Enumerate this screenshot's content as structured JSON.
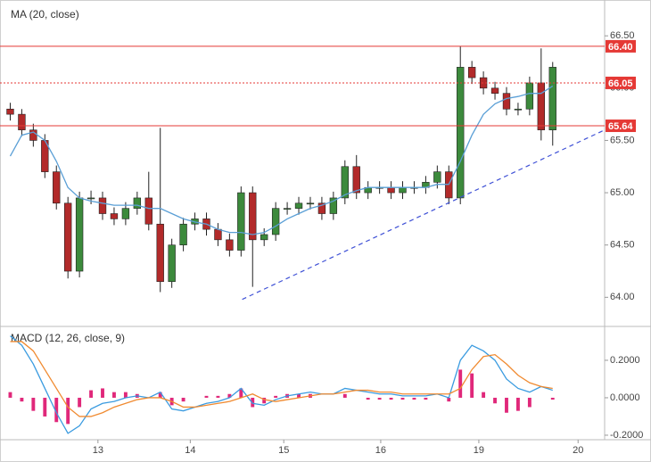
{
  "chart_data": [
    {
      "type": "candlestick",
      "title": "MA (20, close)",
      "xlim": [
        0,
        52
      ],
      "ylim": [
        63.73,
        66.8
      ],
      "yticks": [
        {
          "value": 64,
          "label": "64.00"
        },
        {
          "value": 64.5,
          "label": "64.50"
        },
        {
          "value": 65,
          "label": "65.00"
        },
        {
          "value": 65.5,
          "label": "65.50"
        },
        {
          "value": 66,
          "label": "66.00"
        },
        {
          "value": 66.5,
          "label": "66.50"
        }
      ],
      "grid": false,
      "up_color": "#3c8a3c",
      "down_color": "#b22a2a",
      "open": [
        65.8,
        65.75,
        65.6,
        65.5,
        65.2,
        64.9,
        64.25,
        64.95,
        64.95,
        64.8,
        64.75,
        64.85,
        64.95,
        64.7,
        64.15,
        64.5,
        64.7,
        64.75,
        64.65,
        64.55,
        64.45,
        65.0,
        64.55,
        64.6,
        64.85,
        64.85,
        64.9,
        64.9,
        64.8,
        64.95,
        65.25,
        65.0,
        65.05,
        65.05,
        65.0,
        65.05,
        65.05,
        65.1,
        65.2,
        64.95,
        66.2,
        66.1,
        66.0,
        65.95,
        65.8,
        65.8,
        66.05,
        65.6
      ],
      "high": [
        65.86,
        65.8,
        65.66,
        65.56,
        65.26,
        64.96,
        65.01,
        65.02,
        65.01,
        64.86,
        64.91,
        65.01,
        65.2,
        65.62,
        64.56,
        64.76,
        64.81,
        64.81,
        64.71,
        64.61,
        65.06,
        65.06,
        64.66,
        64.91,
        64.91,
        64.96,
        64.96,
        64.96,
        65.01,
        65.31,
        65.36,
        65.11,
        65.11,
        65.11,
        65.11,
        65.11,
        65.16,
        65.26,
        65.26,
        66.4,
        66.26,
        66.16,
        66.06,
        66.01,
        65.86,
        66.11,
        66.38,
        66.25
      ],
      "low": [
        65.69,
        65.54,
        65.44,
        65.14,
        64.84,
        64.18,
        64.19,
        64.89,
        64.74,
        64.69,
        64.69,
        64.79,
        64.64,
        64.05,
        64.09,
        64.44,
        64.64,
        64.59,
        64.49,
        64.39,
        64.39,
        64.1,
        64.49,
        64.54,
        64.79,
        64.79,
        64.84,
        64.74,
        64.74,
        64.89,
        64.94,
        64.94,
        64.99,
        64.94,
        64.94,
        64.99,
        64.99,
        65.04,
        64.89,
        64.89,
        66.04,
        65.94,
        65.89,
        65.74,
        65.74,
        65.74,
        65.5,
        65.45
      ],
      "close": [
        65.75,
        65.6,
        65.5,
        65.2,
        64.9,
        64.25,
        64.95,
        64.95,
        64.8,
        64.75,
        64.85,
        64.95,
        64.7,
        64.15,
        64.5,
        64.7,
        64.75,
        64.65,
        64.55,
        64.45,
        65.0,
        64.55,
        64.6,
        64.85,
        64.85,
        64.9,
        64.9,
        64.8,
        64.95,
        65.25,
        65.0,
        65.05,
        65.05,
        65.0,
        65.05,
        65.05,
        65.1,
        65.2,
        64.95,
        66.2,
        66.1,
        66.0,
        65.95,
        65.8,
        65.8,
        66.05,
        65.6,
        66.2
      ],
      "ma": {
        "color": "#5a9fd6",
        "values": [
          65.35,
          65.55,
          65.58,
          65.5,
          65.3,
          65.05,
          64.95,
          64.92,
          64.9,
          64.88,
          64.88,
          64.88,
          64.85,
          64.85,
          64.8,
          64.75,
          64.72,
          64.7,
          64.65,
          64.62,
          64.62,
          64.6,
          64.62,
          64.68,
          64.75,
          64.8,
          64.85,
          64.88,
          64.92,
          64.98,
          65.02,
          65.05,
          65.05,
          65.05,
          65.05,
          65.05,
          65.05,
          65.08,
          65.08,
          65.3,
          65.55,
          65.75,
          65.85,
          65.9,
          65.92,
          65.95,
          65.95,
          66.02
        ]
      },
      "levels": [
        {
          "value": 66.4,
          "label": "66.40",
          "style": "solid",
          "color": "#e53935"
        },
        {
          "value": 66.05,
          "label": "66.05",
          "style": "dotted",
          "color": "#e53935"
        },
        {
          "value": 65.64,
          "label": "65.64",
          "style": "solid",
          "color": "#e53935"
        }
      ],
      "trendline": {
        "x": [
          20.6,
          52
        ],
        "y": [
          63.98,
          65.6
        ],
        "color": "#3f51d6"
      }
    },
    {
      "type": "macd",
      "title": "MACD (12, 26, close, 9)",
      "xlim": [
        0,
        52
      ],
      "ylim": [
        -0.224,
        0.376
      ],
      "xticks": [
        {
          "value": 8.1,
          "label": "13"
        },
        {
          "value": 16.1,
          "label": "14"
        },
        {
          "value": 24.2,
          "label": "15"
        },
        {
          "value": 32.6,
          "label": "16"
        },
        {
          "value": 41.1,
          "label": "19"
        },
        {
          "value": 49.7,
          "label": "20"
        }
      ],
      "yticks": [
        {
          "value": -0.2,
          "label": "-0.2000"
        },
        {
          "value": 0,
          "label": "0.0000"
        },
        {
          "value": 0.2,
          "label": "0.2000"
        }
      ],
      "series": [
        {
          "name": "MACD",
          "color": "#3a9be0",
          "values": [
            0.33,
            0.28,
            0.18,
            0.05,
            -0.08,
            -0.19,
            -0.15,
            -0.06,
            -0.03,
            -0.02,
            0.0,
            0.01,
            0.0,
            0.03,
            -0.06,
            -0.07,
            -0.05,
            -0.03,
            -0.02,
            0.0,
            0.05,
            -0.03,
            -0.04,
            -0.01,
            0.01,
            0.02,
            0.03,
            0.02,
            0.02,
            0.05,
            0.04,
            0.03,
            0.02,
            0.02,
            0.01,
            0.01,
            0.01,
            0.02,
            0.0,
            0.2,
            0.28,
            0.25,
            0.2,
            0.1,
            0.05,
            0.03,
            0.06,
            0.04
          ]
        },
        {
          "name": "Signal",
          "color": "#f08a30",
          "values": [
            0.3,
            0.3,
            0.25,
            0.15,
            0.05,
            -0.05,
            -0.1,
            -0.1,
            -0.08,
            -0.05,
            -0.03,
            -0.01,
            0.0,
            0.0,
            -0.02,
            -0.05,
            -0.05,
            -0.04,
            -0.03,
            -0.02,
            0.0,
            0.02,
            -0.01,
            -0.02,
            -0.01,
            0.0,
            0.01,
            0.02,
            0.02,
            0.03,
            0.04,
            0.04,
            0.03,
            0.03,
            0.02,
            0.02,
            0.02,
            0.02,
            0.02,
            0.05,
            0.15,
            0.22,
            0.23,
            0.18,
            0.12,
            0.08,
            0.06,
            0.05
          ]
        }
      ],
      "histogram": {
        "color": "#e0287a",
        "values": [
          0.03,
          -0.02,
          -0.07,
          -0.1,
          -0.13,
          -0.14,
          -0.05,
          0.04,
          0.05,
          0.03,
          0.03,
          0.02,
          0.0,
          0.03,
          -0.04,
          -0.02,
          0.0,
          0.01,
          0.01,
          0.02,
          0.05,
          -0.05,
          -0.03,
          0.01,
          0.02,
          0.02,
          0.02,
          0.0,
          0.0,
          0.02,
          0.0,
          -0.01,
          -0.01,
          -0.01,
          -0.01,
          -0.01,
          -0.01,
          0.0,
          -0.02,
          0.15,
          0.13,
          0.03,
          -0.03,
          -0.08,
          -0.07,
          -0.05,
          0.0,
          -0.01
        ]
      }
    }
  ]
}
